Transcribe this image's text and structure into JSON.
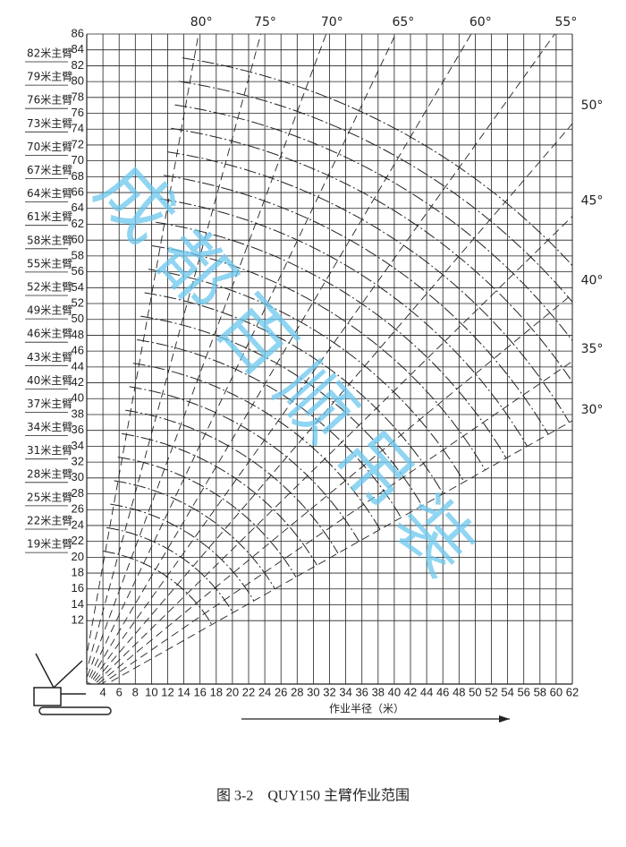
{
  "chart_data": {
    "type": "crane-range",
    "caption": "图 3-2　QUY150 主臂作业范围",
    "x_label": "作业半径（米）",
    "watermark": "成都百顺吊装",
    "xlim": [
      2,
      62
    ],
    "ylim": [
      4,
      86
    ],
    "xticks": [
      4,
      6,
      8,
      10,
      12,
      14,
      16,
      18,
      20,
      22,
      24,
      26,
      28,
      30,
      32,
      34,
      36,
      38,
      40,
      42,
      44,
      46,
      48,
      50,
      52,
      54,
      56,
      58,
      60,
      62
    ],
    "yticks": [
      12,
      14,
      16,
      18,
      20,
      22,
      24,
      26,
      28,
      30,
      32,
      34,
      36,
      38,
      40,
      42,
      44,
      46,
      48,
      50,
      52,
      54,
      56,
      58,
      60,
      62,
      64,
      66,
      68,
      70,
      72,
      74,
      76,
      78,
      80,
      82,
      84,
      86
    ],
    "booms": [
      {
        "label": "82米主臂",
        "length": 82
      },
      {
        "label": "79米主臂",
        "length": 79
      },
      {
        "label": "76米主臂",
        "length": 76
      },
      {
        "label": "73米主臂",
        "length": 73
      },
      {
        "label": "70米主臂",
        "length": 70
      },
      {
        "label": "67米主臂",
        "length": 67
      },
      {
        "label": "64米主臂",
        "length": 64
      },
      {
        "label": "61米主臂",
        "length": 61
      },
      {
        "label": "58米主臂",
        "length": 58
      },
      {
        "label": "55米主臂",
        "length": 55
      },
      {
        "label": "52米主臂",
        "length": 52
      },
      {
        "label": "49米主臂",
        "length": 49
      },
      {
        "label": "46米主臂",
        "length": 46
      },
      {
        "label": "43米主臂",
        "length": 43
      },
      {
        "label": "40米主臂",
        "length": 40
      },
      {
        "label": "37米主臂",
        "length": 37
      },
      {
        "label": "34米主臂",
        "length": 34
      },
      {
        "label": "31米主臂",
        "length": 31
      },
      {
        "label": "28米主臂",
        "length": 28
      },
      {
        "label": "25米主臂",
        "length": 25
      },
      {
        "label": "22米主臂",
        "length": 22
      },
      {
        "label": "19米主臂",
        "length": 19
      }
    ],
    "angles": [
      {
        "value": 80,
        "label": "80°"
      },
      {
        "value": 75,
        "label": "75°"
      },
      {
        "value": 70,
        "label": "70°"
      },
      {
        "value": 65,
        "label": "65°"
      },
      {
        "value": 60,
        "label": "60°"
      },
      {
        "value": 55,
        "label": "55°"
      },
      {
        "value": 50,
        "label": "50°"
      },
      {
        "value": 45,
        "label": "45°"
      },
      {
        "value": 40,
        "label": "40°"
      },
      {
        "value": 35,
        "label": "35°"
      },
      {
        "value": 30,
        "label": "30°"
      }
    ],
    "grid": true,
    "color": "#222222",
    "watermark_color": "#6cc8ee"
  }
}
